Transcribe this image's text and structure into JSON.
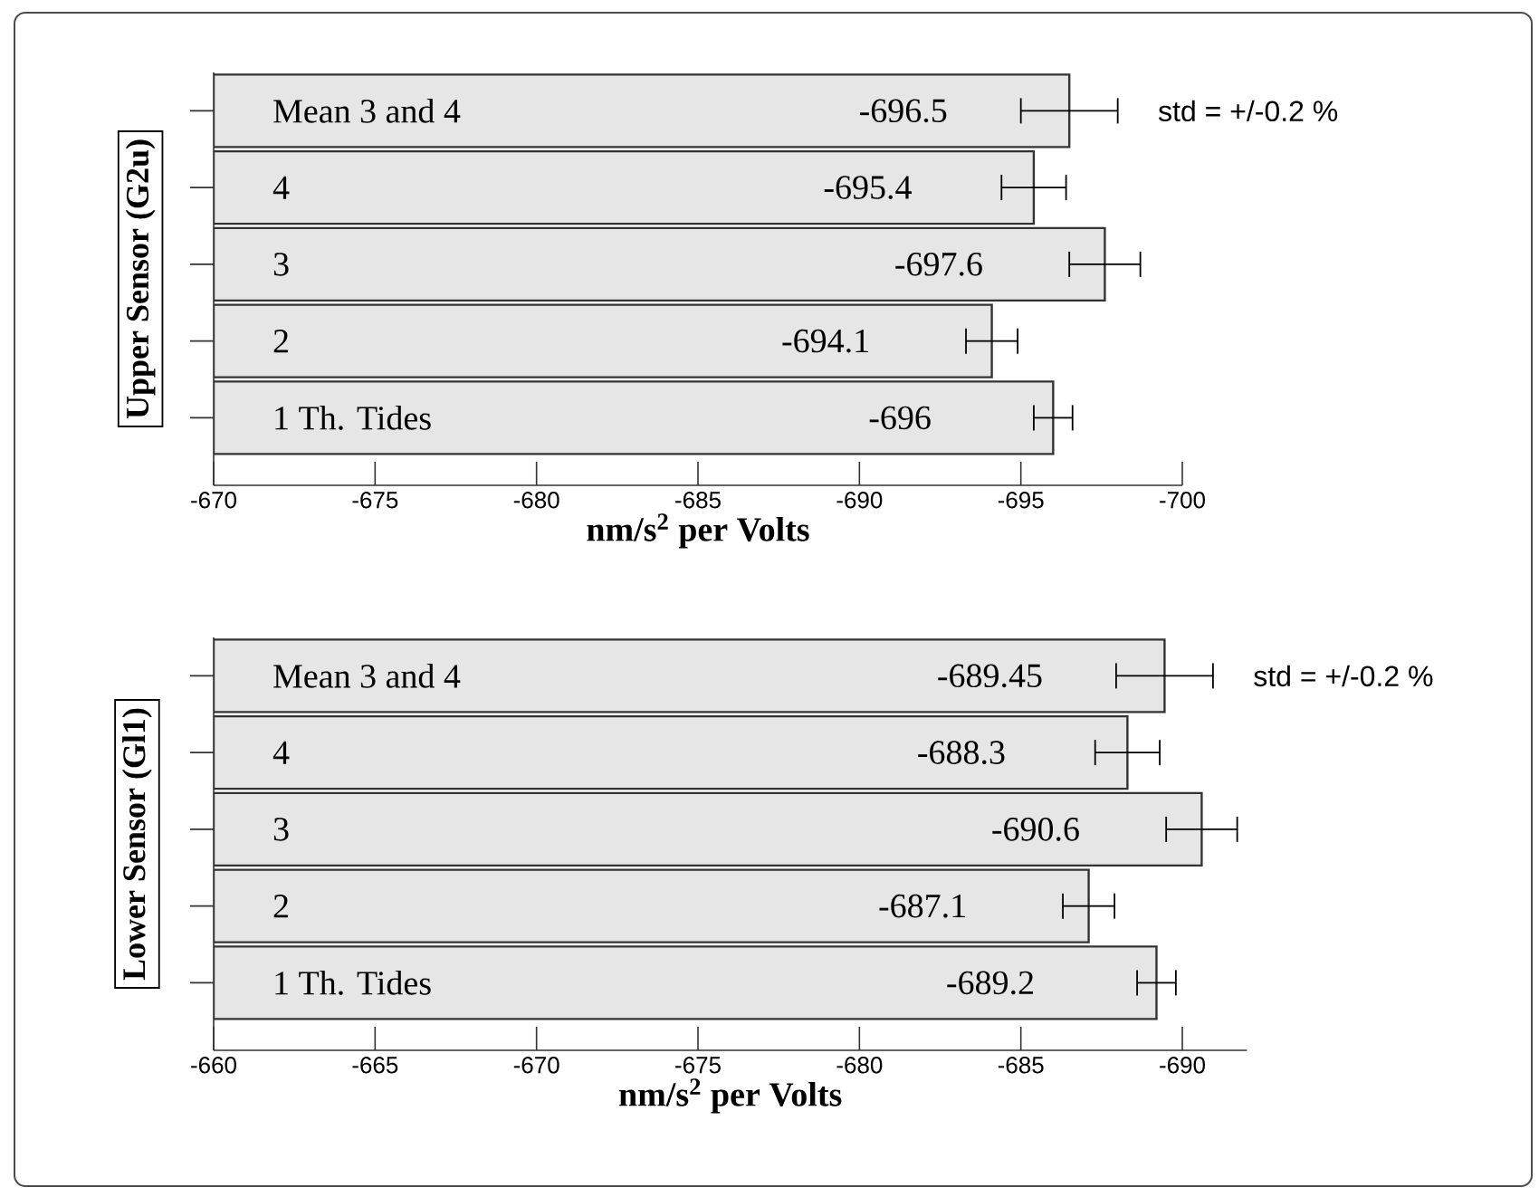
{
  "chart_data": [
    {
      "type": "bar",
      "orientation": "horizontal",
      "ylabel": "Upper Sensor (G2u)",
      "xlabel": "nm/s$^{2}$ per Volts",
      "categories": [
        "Mean 3 and 4",
        "4",
        "3",
        "2",
        "1 Th. Tides"
      ],
      "values": [
        -696.5,
        -695.4,
        -697.6,
        -694.1,
        -696
      ],
      "value_labels": [
        "-696.5",
        "-695.4",
        "-697.6",
        "-694.1",
        "-696"
      ],
      "errors": [
        1.5,
        1.0,
        1.1,
        0.8,
        0.6
      ],
      "color": "#e6e6e6",
      "xlim": [
        -670,
        -700
      ],
      "xticks": [
        -670,
        -675,
        -680,
        -685,
        -690,
        -695,
        -700
      ],
      "annotations": [
        "std = +/-0.2 %"
      ]
    },
    {
      "type": "bar",
      "orientation": "horizontal",
      "ylabel": "Lower Sensor (Gl1)",
      "xlabel": "nm/s$^{2}$ per Volts",
      "categories": [
        "Mean 3 and 4",
        "4",
        "3",
        "2",
        "1 Th. Tides"
      ],
      "values": [
        -689.45,
        -688.3,
        -690.6,
        -687.1,
        -689.2
      ],
      "value_labels": [
        "-689.45",
        "-688.3",
        "-690.6",
        "-687.1",
        "-689.2"
      ],
      "errors": [
        1.5,
        1.0,
        1.1,
        0.8,
        0.6
      ],
      "color": "#e6e6e6",
      "xlim": [
        -660,
        -692
      ],
      "xticks": [
        -660,
        -665,
        -670,
        -675,
        -680,
        -685,
        -690
      ],
      "annotations": [
        "std = +/-0.2 %"
      ]
    }
  ]
}
